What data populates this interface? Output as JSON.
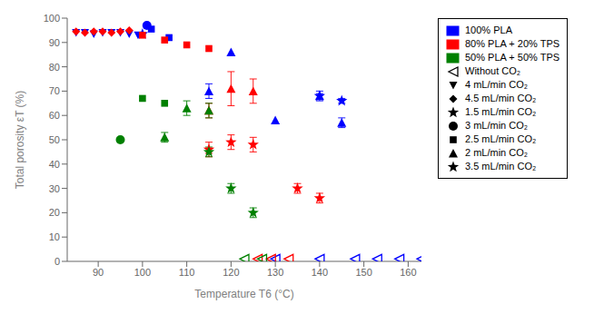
{
  "chart_data": {
    "type": "scatter",
    "xlabel": "Temperature T6 (°C)",
    "ylabel": "Total porosity εT (%)",
    "xlim": [
      83,
      163
    ],
    "ylim": [
      0,
      100
    ],
    "xticks": [
      90,
      100,
      110,
      120,
      130,
      140,
      150,
      160
    ],
    "yticks": [
      0,
      10,
      20,
      30,
      40,
      50,
      60,
      70,
      80,
      90,
      100
    ],
    "grid": false,
    "legend": "right",
    "materials": [
      {
        "name": "100% PLA",
        "color": "#0000ff"
      },
      {
        "name": "80% PLA + 20% TPS",
        "color": "#ff0000"
      },
      {
        "name": "50% PLA + 50% TPS",
        "color": "#008000"
      }
    ],
    "series": [
      {
        "name": "Without CO₂",
        "marker": "triangle-left-open",
        "groups": [
          {
            "color": "#0000ff",
            "x": [
              130,
              140,
              148,
              153,
              158,
              163
            ],
            "y": [
              1,
              1,
              1,
              1,
              1,
              1
            ]
          },
          {
            "color": "#ff0000",
            "x": [
              126,
              129,
              133
            ],
            "y": [
              1,
              1,
              1
            ]
          },
          {
            "color": "#008000",
            "x": [
              123,
              127
            ],
            "y": [
              1,
              1
            ]
          }
        ]
      },
      {
        "name": "4 mL/min CO₂",
        "marker": "triangle-down",
        "groups": [
          {
            "color": "#0000ff",
            "x": [
              85,
              87,
              89,
              91,
              93,
              95,
              97,
              99
            ],
            "y": [
              94,
              94,
              93.5,
              94,
              94,
              94,
              93.5,
              93
            ]
          }
        ]
      },
      {
        "name": "4.5 mL/min CO₂",
        "marker": "diamond",
        "groups": [
          {
            "color": "#ff0000",
            "x": [
              85,
              87,
              89,
              91,
              93,
              95,
              97
            ],
            "y": [
              94.5,
              94,
              94.5,
              94.5,
              94,
              94.5,
              95
            ]
          }
        ]
      },
      {
        "name": "1.5 mL/min CO₂",
        "marker": "star",
        "groups": [
          {
            "color": "#0000ff",
            "x": [
              100
            ],
            "y": [
              93.5
            ]
          }
        ]
      },
      {
        "name": "3 mL/min CO₂",
        "marker": "circle",
        "groups": [
          {
            "color": "#0000ff",
            "x": [
              101
            ],
            "y": [
              97
            ]
          },
          {
            "color": "#008000",
            "x": [
              95
            ],
            "y": [
              50
            ]
          }
        ]
      },
      {
        "name": "2.5 mL/min CO₂",
        "marker": "square",
        "groups": [
          {
            "color": "#0000ff",
            "x": [
              102,
              106
            ],
            "y": [
              95.5,
              92
            ]
          },
          {
            "color": "#ff0000",
            "x": [
              100,
              105,
              110,
              115
            ],
            "y": [
              93,
              91,
              89,
              87.5
            ]
          },
          {
            "color": "#008000",
            "x": [
              100,
              105
            ],
            "y": [
              67,
              65
            ]
          }
        ]
      },
      {
        "name": "2 mL/min CO₂",
        "marker": "triangle-up",
        "groups": [
          {
            "color": "#0000ff",
            "x": [
              115,
              120,
              130,
              140,
              145
            ],
            "y": [
              70,
              86,
              58,
              68,
              57
            ],
            "yerr": [
              3,
              0,
              0,
              2,
              2
            ]
          },
          {
            "color": "#ff0000",
            "x": [
              115,
              120,
              125
            ],
            "y": [
              62,
              71,
              70
            ],
            "yerr": [
              3,
              7,
              5
            ]
          },
          {
            "color": "#008000",
            "x": [
              105,
              110,
              115
            ],
            "y": [
              51,
              63,
              62
            ],
            "yerr": [
              2,
              3,
              3
            ]
          }
        ]
      },
      {
        "name": "3.5 mL/min CO₂",
        "marker": "star",
        "groups": [
          {
            "color": "#0000ff",
            "x": [
              140,
              145
            ],
            "y": [
              68,
              66
            ],
            "yerr": [
              1,
              1
            ]
          },
          {
            "color": "#ff0000",
            "x": [
              115,
              120,
              125,
              135,
              140
            ],
            "y": [
              46,
              49,
              48,
              30,
              26
            ],
            "yerr": [
              3,
              3,
              3,
              2,
              2
            ]
          },
          {
            "color": "#008000",
            "x": [
              115,
              120,
              125
            ],
            "y": [
              45,
              30,
              20
            ],
            "yerr": [
              2,
              2,
              2
            ]
          }
        ]
      }
    ]
  }
}
